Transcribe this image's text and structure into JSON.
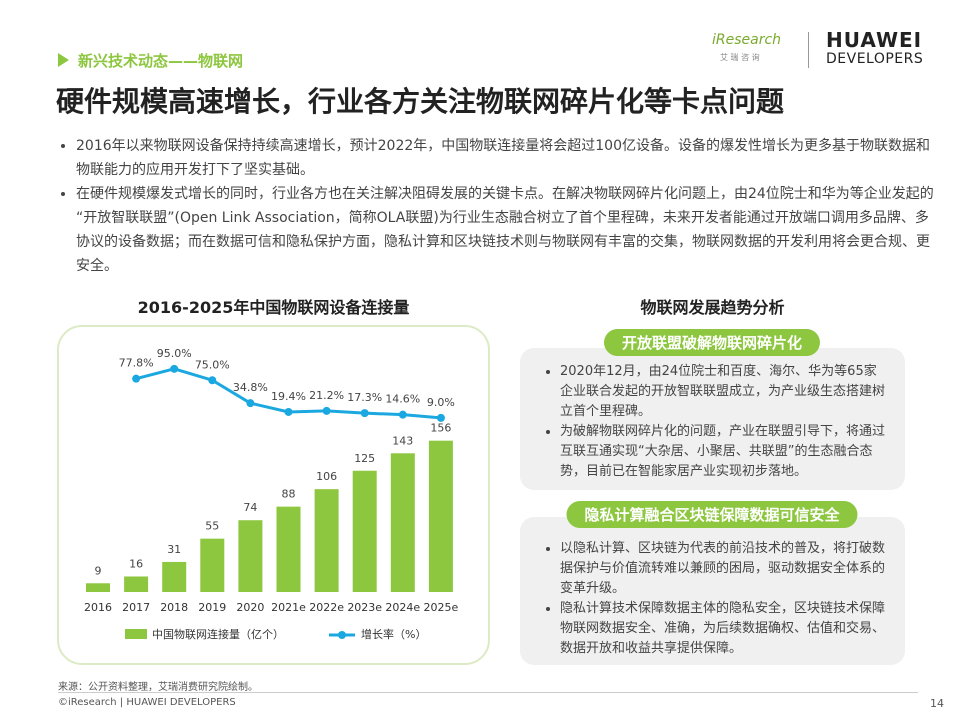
{
  "header": {
    "section": "新兴技术动态——物联网",
    "title": "硬件规模高速增长，行业各方关注物联网碎片化等卡点问题"
  },
  "logos": {
    "iresearch": "iResearch",
    "iresearch_sub": "艾 瑞 咨 询",
    "huawei": "HUAWEI",
    "developers": "DEVELOPERS"
  },
  "bullets": [
    "2016年以来物联网设备保持持续高速增长，预计2022年，中国物联连接量将会超过100亿设备。设备的爆发性增长为更多基于物联数据和物联能力的应用开发打下了坚实基础。",
    "在硬件规模爆发式增长的同时，行业各方也在关注解决阻碍发展的关键卡点。在解决物联网碎片化问题上，由24位院士和华为等企业发起的“开放智联联盟”(Open Link Association，简称OLA联盟)为行业生态融合树立了首个里程碑，未来开发者能通过开放端口调用多品牌、多协议的设备数据；而在数据可信和隐私保护方面，隐私计算和区块链技术则与物联网有丰富的交集，物联网数据的开发利用将会更合规、更安全。"
  ],
  "chart_data": {
    "type": "bar",
    "title": "2016-2025年中国物联网设备连接量",
    "categories": [
      "2016",
      "2017",
      "2018",
      "2019",
      "2020",
      "2021e",
      "2022e",
      "2023e",
      "2024e",
      "2025e"
    ],
    "series": [
      {
        "name": "中国物联网连接量（亿个）",
        "color": "#8dc63f",
        "values": [
          9,
          16,
          31,
          55,
          74,
          88,
          106,
          125,
          143,
          156
        ]
      },
      {
        "name": "增长率（%）",
        "type": "line",
        "color": "#1ba8e0",
        "values": [
          null,
          77.8,
          95.0,
          75.0,
          34.8,
          19.4,
          21.2,
          17.3,
          14.6,
          9.0
        ],
        "value_labels": [
          null,
          "77.8%",
          "95.0%",
          "75.0%",
          "34.8%",
          "19.4%",
          "21.2%",
          "17.3%",
          "14.6%",
          "9.0%"
        ]
      }
    ]
  },
  "trends": {
    "title": "物联网发展趋势分析",
    "sections": [
      {
        "heading": "开放联盟破解物联网碎片化",
        "items": [
          "2020年12月，由24位院士和百度、海尔、华为等65家企业联合发起的开放智联联盟成立，为产业级生态搭建树立首个里程碑。",
          "为破解物联网碎片化的问题，产业在联盟引导下，将通过互联互通实现“大杂居、小聚居、共联盟”的生态融合态势，目前已在智能家居产业实现初步落地。"
        ]
      },
      {
        "heading": "隐私计算融合区块链保障数据可信安全",
        "items": [
          "以隐私计算、区块链为代表的前沿技术的普及，将打破数据保护与价值流转难以兼顾的困局，驱动数据安全体系的变革升级。",
          "隐私计算技术保障数据主体的隐私安全，区块链技术保障物联网数据安全、准确，为后续数据确权、估值和交易、数据开放和收益共享提供保障。"
        ]
      }
    ]
  },
  "footer": {
    "source": "来源：公开资料整理，艾瑞消费研究院绘制。",
    "copyright": "©iResearch | HUAWEI DEVELOPERS",
    "page": "14"
  }
}
